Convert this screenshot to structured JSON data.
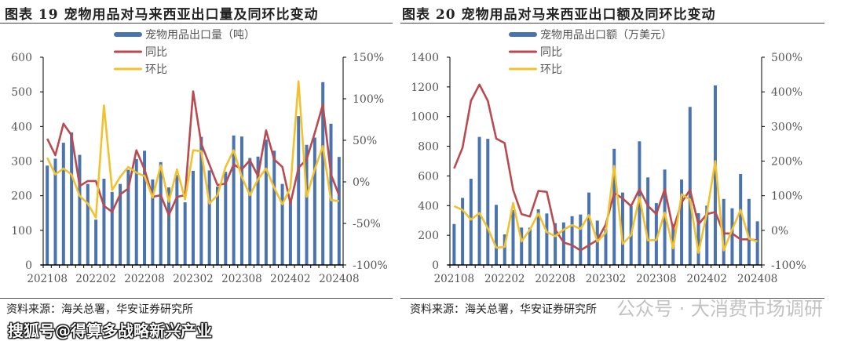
{
  "watermarks": {
    "top": "搜狐号@得算多战略新兴产业",
    "bottom": "公众号 · 大消费市场调研"
  },
  "colors": {
    "bar": "#4a74b0",
    "yoy": "#b94a4f",
    "mom": "#f2c22e"
  },
  "chart_data": [
    {
      "type": "bar",
      "title": "图表 19 宠物用品对马来西亚出口量及同环比变动",
      "source": "资料来源：海关总署，华安证券研究所",
      "x_tick_labels": [
        "202108",
        "202202",
        "202208",
        "202302",
        "202308",
        "202402",
        "202408"
      ],
      "ylim": [
        0,
        600
      ],
      "y_ticks": [
        0,
        100,
        200,
        300,
        400,
        500,
        600
      ],
      "y2lim": [
        -100,
        150
      ],
      "y2_ticks": [
        -100,
        -50,
        0,
        50,
        100,
        150
      ],
      "y2_tick_labels": [
        "-100%",
        "-50%",
        "0%",
        "50%",
        "100%",
        "150%"
      ],
      "legend": {
        "bar": "宠物用品出口量（吨）",
        "yoy": "同比",
        "mom": "环比"
      },
      "series": [
        {
          "name": "宠物用品出口量（吨）",
          "type": "bar",
          "axis": "left",
          "values": [
            287,
            307,
            353,
            383,
            318,
            234,
            131,
            249,
            211,
            234,
            275,
            306,
            330,
            247,
            297,
            224,
            260,
            181,
            272,
            370,
            273,
            226,
            269,
            374,
            371,
            309,
            313,
            362,
            330,
            234,
            192,
            430,
            347,
            368,
            528,
            408,
            312
          ]
        },
        {
          "name": "同比",
          "type": "line",
          "axis": "right",
          "values": [
            52,
            32,
            70,
            56,
            -5,
            1,
            1,
            -29,
            -36,
            -15,
            -8,
            38,
            15,
            -18,
            -16,
            -40,
            -18,
            -16,
            109,
            46,
            21,
            -4,
            -2,
            21,
            15,
            26,
            7,
            62,
            27,
            18,
            -26,
            17,
            27,
            59,
            93,
            9,
            -16
          ]
        },
        {
          "name": "环比",
          "type": "line",
          "axis": "right",
          "values": [
            29,
            9,
            16,
            9,
            -17,
            -26,
            -43,
            92,
            -10,
            6,
            18,
            11,
            7,
            -19,
            20,
            -24,
            15,
            -21,
            38,
            37,
            -26,
            -16,
            18,
            38,
            6,
            -16,
            3,
            16,
            -7,
            -27,
            -7,
            121,
            -18,
            15,
            43,
            -22,
            -23
          ]
        }
      ]
    },
    {
      "type": "bar",
      "title": "图表 20 宠物用品对马来西亚出口额及同环比变动",
      "source": "资料来源：海关总署，华安证券研究所",
      "x_tick_labels": [
        "202108",
        "202202",
        "202208",
        "202302",
        "202308",
        "202402",
        "202408"
      ],
      "ylim": [
        0,
        1400
      ],
      "y_ticks": [
        0,
        200,
        400,
        600,
        800,
        1000,
        1200,
        1400
      ],
      "y2lim": [
        -100,
        500
      ],
      "y2_ticks": [
        -100,
        0,
        100,
        200,
        300,
        400,
        500
      ],
      "y2_tick_labels": [
        "-100%",
        "0%",
        "100%",
        "200%",
        "300%",
        "400%",
        "500%"
      ],
      "legend": {
        "bar": "宠物用品出口额（万美元）",
        "yoy": "同比",
        "mom": "环比"
      },
      "series": [
        {
          "name": "宠物用品出口额（万美元）",
          "type": "bar",
          "axis": "left",
          "values": [
            276,
            452,
            581,
            863,
            850,
            405,
            206,
            370,
            252,
            252,
            375,
            347,
            282,
            287,
            329,
            340,
            488,
            299,
            241,
            783,
            488,
            396,
            833,
            590,
            417,
            643,
            276,
            576,
            1065,
            349,
            400,
            1210,
            445,
            382,
            613,
            445,
            294
          ]
        },
        {
          "name": "同比",
          "type": "line",
          "axis": "right",
          "values": [
            179,
            239,
            374,
            421,
            374,
            265,
            252,
            117,
            47,
            40,
            114,
            111,
            2,
            -35,
            -43,
            -58,
            -43,
            -28,
            17,
            108,
            92,
            70,
            119,
            71,
            47,
            119,
            2,
            81,
            117,
            17,
            47,
            53,
            -9,
            -9,
            -26,
            -26,
            -29
          ]
        },
        {
          "name": "环比",
          "type": "line",
          "axis": "right",
          "values": [
            70,
            59,
            31,
            50,
            6,
            -50,
            -48,
            79,
            -32,
            2,
            49,
            -5,
            -17,
            2,
            15,
            4,
            44,
            -32,
            -7,
            186,
            -39,
            -14,
            96,
            -29,
            -28,
            51,
            -52,
            104,
            89,
            -65,
            51,
            200,
            -58,
            2,
            59,
            -24,
            -32
          ]
        }
      ]
    }
  ]
}
